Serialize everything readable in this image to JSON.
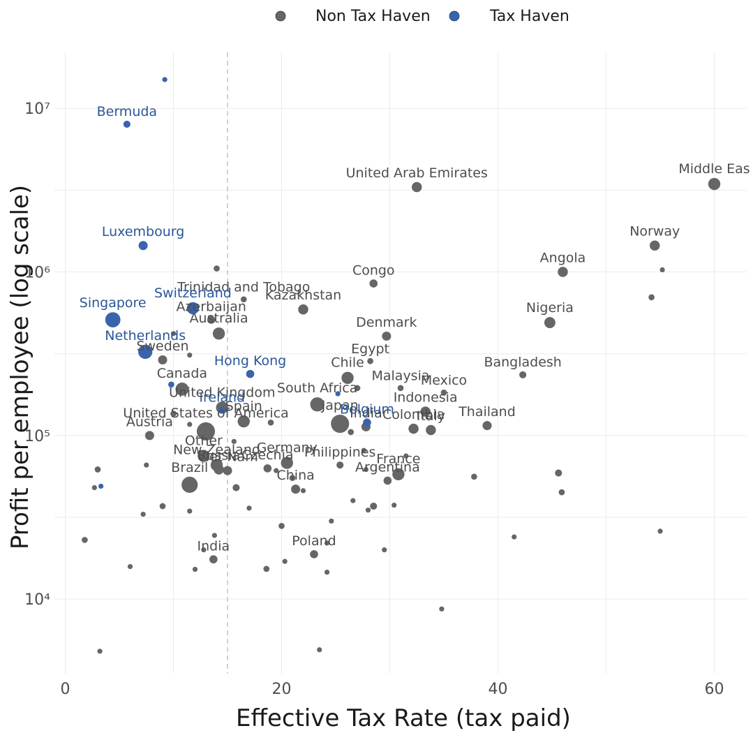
{
  "chart_data": {
    "type": "scatter",
    "xlabel": "Effective Tax Rate (tax paid)",
    "ylabel": "Profit per employee (log scale)",
    "x_scale": "linear",
    "y_scale": "log10",
    "xlim": [
      -1,
      63
    ],
    "ylim": [
      3500,
      22000000
    ],
    "x_ticks": [
      {
        "value": 0,
        "label": "0"
      },
      {
        "value": 20,
        "label": "20"
      },
      {
        "value": 40,
        "label": "40"
      },
      {
        "value": 60,
        "label": "60"
      }
    ],
    "y_ticks": [
      {
        "value": 10000,
        "label": "10⁴"
      },
      {
        "value": 100000,
        "label": "10⁵"
      },
      {
        "value": 1000000,
        "label": "10⁶"
      },
      {
        "value": 10000000,
        "label": "10⁷"
      }
    ],
    "reference_line": {
      "x": 15,
      "style": "dashed",
      "color": "#b3b3b3"
    },
    "grid": true,
    "legend": {
      "position": "top-center",
      "entries": [
        {
          "name": "Non Tax Haven",
          "color": "#666666"
        },
        {
          "name": "Tax Haven",
          "color": "#3a63ad"
        }
      ]
    },
    "series": [
      {
        "name": "Non Tax Haven",
        "color": "#666666",
        "label_color": "#4d4d4d",
        "points": [
          {
            "x": 32.5,
            "y": 3300000,
            "size": 5,
            "label": "United Arab Emirates"
          },
          {
            "x": 60,
            "y": 3450000,
            "size": 6,
            "label": "Middle Eas"
          },
          {
            "x": 54.5,
            "y": 1450000,
            "size": 5,
            "label": "Norway"
          },
          {
            "x": 46,
            "y": 1000000,
            "size": 5,
            "label": "Angola"
          },
          {
            "x": 28.5,
            "y": 850000,
            "size": 4,
            "label": "Congo"
          },
          {
            "x": 44.8,
            "y": 490000,
            "size": 5.5,
            "label": "Nigeria"
          },
          {
            "x": 22,
            "y": 590000,
            "size": 5,
            "label": "Kazakhstan"
          },
          {
            "x": 16.5,
            "y": 680000,
            "size": 3,
            "label": "Trinidad and Tobago"
          },
          {
            "x": 13.5,
            "y": 510000,
            "size": 4,
            "label": "Azerbaijan"
          },
          {
            "x": 14.2,
            "y": 420000,
            "size": 6,
            "label": "Australia"
          },
          {
            "x": 29.7,
            "y": 405000,
            "size": 4.5,
            "label": "Denmark"
          },
          {
            "x": 9,
            "y": 290000,
            "size": 4.5,
            "label": "Sweden"
          },
          {
            "x": 28.2,
            "y": 285000,
            "size": 3,
            "label": "Egypt"
          },
          {
            "x": 42.3,
            "y": 235000,
            "size": 3.5,
            "label": "Bangladesh"
          },
          {
            "x": 10.8,
            "y": 192000,
            "size": 6.5,
            "label": "Canada"
          },
          {
            "x": 26.1,
            "y": 225000,
            "size": 6,
            "label": "Chile"
          },
          {
            "x": 14.5,
            "y": 148000,
            "size": 6,
            "label": "United Kingdom"
          },
          {
            "x": 16.5,
            "y": 122000,
            "size": 6,
            "label": "Spain"
          },
          {
            "x": 13,
            "y": 106000,
            "size": 9,
            "label": "United States of America"
          },
          {
            "x": 7.8,
            "y": 100000,
            "size": 4.5,
            "label": "Austria"
          },
          {
            "x": 23.3,
            "y": 155000,
            "size": 7,
            "label": "South Africa"
          },
          {
            "x": 25.4,
            "y": 118000,
            "size": 9,
            "label": "Japan"
          },
          {
            "x": 27.8,
            "y": 113000,
            "size": 4.5,
            "label": "India"
          },
          {
            "x": 31,
            "y": 195000,
            "size": 3,
            "label": "Malaysia"
          },
          {
            "x": 35,
            "y": 183000,
            "size": 3,
            "label": "Mexico"
          },
          {
            "x": 33.3,
            "y": 140000,
            "size": 5,
            "label": "Indonesia"
          },
          {
            "x": 32.2,
            "y": 110000,
            "size": 5,
            "label": "Colombia"
          },
          {
            "x": 33.8,
            "y": 108000,
            "size": 5,
            "label": "Italy"
          },
          {
            "x": 39,
            "y": 115000,
            "size": 4.5,
            "label": "Thailand"
          },
          {
            "x": 12.8,
            "y": 75000,
            "size": 6,
            "label": "Other"
          },
          {
            "x": 14,
            "y": 66000,
            "size": 6,
            "label": "New Zealand"
          },
          {
            "x": 14.2,
            "y": 62000,
            "size": 5,
            "label": "Russia"
          },
          {
            "x": 11.5,
            "y": 50000,
            "size": 8,
            "label": "Brazil"
          },
          {
            "x": 15,
            "y": 61000,
            "size": 4.5,
            "label": "Viet Nam"
          },
          {
            "x": 18.7,
            "y": 63000,
            "size": 4,
            "label": "Czechia"
          },
          {
            "x": 20.5,
            "y": 68000,
            "size": 6,
            "label": "Germany"
          },
          {
            "x": 25.4,
            "y": 66000,
            "size": 3.5,
            "label": "Philippines"
          },
          {
            "x": 21.3,
            "y": 47000,
            "size": 4.5,
            "label": "China"
          },
          {
            "x": 30.8,
            "y": 58000,
            "size": 6,
            "label": "France"
          },
          {
            "x": 29.8,
            "y": 53000,
            "size": 4,
            "label": "Argentina"
          },
          {
            "x": 13.7,
            "y": 17500,
            "size": 4,
            "label": "India"
          },
          {
            "x": 23,
            "y": 18800,
            "size": 4,
            "label": "Poland"
          },
          {
            "x": 14,
            "y": 1050000,
            "size": 3
          },
          {
            "x": 10,
            "y": 420000,
            "size": 2.5
          },
          {
            "x": 11.5,
            "y": 310000,
            "size": 2.5
          },
          {
            "x": 27,
            "y": 195000,
            "size": 3
          },
          {
            "x": 10,
            "y": 136000,
            "size": 3
          },
          {
            "x": 19,
            "y": 120000,
            "size": 3
          },
          {
            "x": 11.5,
            "y": 117000,
            "size": 2.5
          },
          {
            "x": 26.4,
            "y": 105000,
            "size": 3
          },
          {
            "x": 15.6,
            "y": 92000,
            "size": 2.5
          },
          {
            "x": 31.5,
            "y": 75000,
            "size": 2.5
          },
          {
            "x": 27.6,
            "y": 81000,
            "size": 2.5
          },
          {
            "x": 3,
            "y": 62000,
            "size": 3
          },
          {
            "x": 7.5,
            "y": 66000,
            "size": 2.5
          },
          {
            "x": 19.5,
            "y": 61000,
            "size": 2.5
          },
          {
            "x": 27.8,
            "y": 62000,
            "size": 2.5
          },
          {
            "x": 21,
            "y": 55000,
            "size": 3
          },
          {
            "x": 15.8,
            "y": 48000,
            "size": 3.5
          },
          {
            "x": 2.7,
            "y": 48000,
            "size": 2.5
          },
          {
            "x": 22,
            "y": 46000,
            "size": 2.5
          },
          {
            "x": 37.8,
            "y": 56000,
            "size": 3
          },
          {
            "x": 45.6,
            "y": 59000,
            "size": 3.5
          },
          {
            "x": 45.9,
            "y": 45000,
            "size": 3
          },
          {
            "x": 26.6,
            "y": 40000,
            "size": 2.5
          },
          {
            "x": 30.4,
            "y": 37500,
            "size": 2.5
          },
          {
            "x": 28.5,
            "y": 37000,
            "size": 3.5
          },
          {
            "x": 28,
            "y": 35000,
            "size": 2.5
          },
          {
            "x": 9,
            "y": 37000,
            "size": 3
          },
          {
            "x": 7.2,
            "y": 33000,
            "size": 2.5
          },
          {
            "x": 11.5,
            "y": 34500,
            "size": 2.5
          },
          {
            "x": 17,
            "y": 36000,
            "size": 2.5
          },
          {
            "x": 24.6,
            "y": 30000,
            "size": 2.5
          },
          {
            "x": 20,
            "y": 28000,
            "size": 3
          },
          {
            "x": 13.8,
            "y": 24500,
            "size": 2.5
          },
          {
            "x": 1.8,
            "y": 23000,
            "size": 3
          },
          {
            "x": 41.5,
            "y": 24000,
            "size": 2.5
          },
          {
            "x": 55,
            "y": 26000,
            "size": 2.5
          },
          {
            "x": 24.2,
            "y": 22000,
            "size": 2.5
          },
          {
            "x": 12.8,
            "y": 20000,
            "size": 2.5
          },
          {
            "x": 29.5,
            "y": 20000,
            "size": 2.5
          },
          {
            "x": 20.3,
            "y": 17000,
            "size": 2.5
          },
          {
            "x": 6,
            "y": 15800,
            "size": 2.5
          },
          {
            "x": 12,
            "y": 15200,
            "size": 2.5
          },
          {
            "x": 18.6,
            "y": 15300,
            "size": 3
          },
          {
            "x": 24.2,
            "y": 14600,
            "size": 2.5
          },
          {
            "x": 34.8,
            "y": 8700,
            "size": 2.5
          },
          {
            "x": 3.2,
            "y": 4800,
            "size": 2.5
          },
          {
            "x": 23.5,
            "y": 4900,
            "size": 2.5
          },
          {
            "x": 54.2,
            "y": 700000,
            "size": 3
          },
          {
            "x": 55.2,
            "y": 1030000,
            "size": 2.5
          }
        ]
      },
      {
        "name": "Tax Haven",
        "color": "#3a63ad",
        "label_color": "#2a5699",
        "points": [
          {
            "x": 5.7,
            "y": 8000000,
            "size": 3.5,
            "label": "Bermuda"
          },
          {
            "x": 7.2,
            "y": 1450000,
            "size": 4.5,
            "label": "Luxembourg"
          },
          {
            "x": 11.8,
            "y": 600000,
            "size": 6,
            "label": "Switzerland"
          },
          {
            "x": 4.4,
            "y": 510000,
            "size": 7.5,
            "label": "Singapore"
          },
          {
            "x": 7.4,
            "y": 325000,
            "size": 7,
            "label": "Netherlands"
          },
          {
            "x": 17.1,
            "y": 238000,
            "size": 4,
            "label": "Hong Kong"
          },
          {
            "x": 14.5,
            "y": 143000,
            "size": 3.5,
            "label": "Ireland"
          },
          {
            "x": 27.9,
            "y": 120000,
            "size": 4,
            "label": "Belgium"
          },
          {
            "x": 9.2,
            "y": 15000000,
            "size": 2.5
          },
          {
            "x": 9.8,
            "y": 205000,
            "size": 3
          },
          {
            "x": 25.2,
            "y": 180000,
            "size": 2.5
          },
          {
            "x": 3.3,
            "y": 49000,
            "size": 2.5
          }
        ]
      }
    ]
  }
}
